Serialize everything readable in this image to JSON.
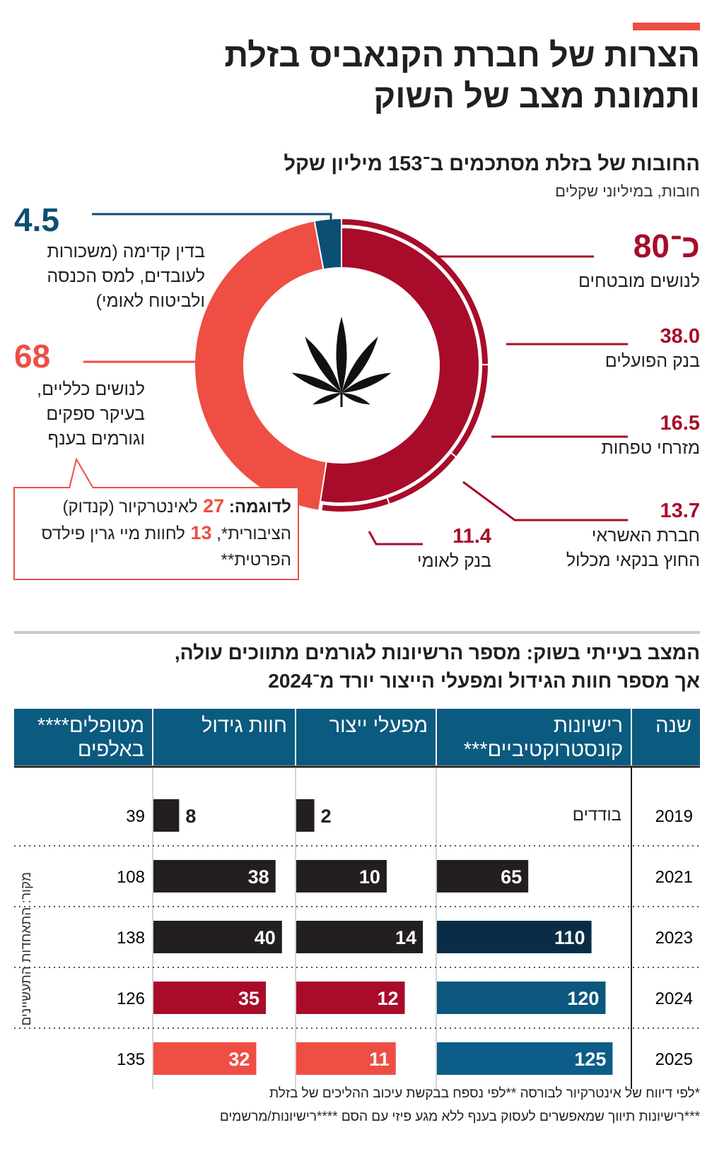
{
  "header": {
    "title_lines": [
      "הצרות של חברת הקנאביס בזלת",
      "ותמונת מצב של השוק"
    ]
  },
  "debt_chart": {
    "type": "donut",
    "title": "החובות של בזלת מסתכמים ב־153 מיליון שקל",
    "subtitle": "חובות, במיליוני שקלים",
    "segments": [
      {
        "lines": [
          "לנושים מובטחים"
        ],
        "value": 80,
        "value_label": "כ־80",
        "color": "#a80c2a"
      },
      {
        "lines": [
          "לנושים כלליים,",
          "בעיקר ספקים",
          "וגורמים בענף"
        ],
        "value": 68,
        "color": "#ee4e43"
      },
      {
        "lines": [
          "בדין קדימה (משכורות",
          "לעובדים, למס הכנסה",
          "ולביטוח לאומי)"
        ],
        "value": 4.5,
        "color": "#0c4f73"
      }
    ],
    "breakdown": {
      "color": "#a80c2a",
      "items": [
        {
          "lines": [
            "בנק הפועלים"
          ],
          "value": 38.0,
          "value_label": "38.0"
        },
        {
          "lines": [
            "מזרחי טפחות"
          ],
          "value": 16.5
        },
        {
          "lines": [
            "חברת האשראי",
            "החוץ בנקאי מכלול"
          ],
          "value": 13.7
        },
        {
          "lines": [
            "בנק לאומי"
          ],
          "value": 11.4
        }
      ]
    },
    "callout": {
      "parts": [
        "לדוגמה:",
        27,
        "לאינטרקיור (קנדוק) הציבורית*,",
        13,
        "לחוות מיי גרין פילדס הפרטית**"
      ],
      "color": "#ee4e43"
    }
  },
  "market": {
    "title_lines": [
      "המצב בעייתי בשוק: מספר הרשיונות לגורמים מתווכים עולה,",
      "אך מספר חוות הגידול ומפעלי הייצור יורד מ־2024"
    ],
    "header_color": "#0b5a80",
    "columns": [
      [
        "שנה"
      ],
      [
        "רישיונות",
        "קונסטרוקטיביים***"
      ],
      [
        "מפעלי ייצור"
      ],
      [
        "חוות גידול"
      ],
      [
        "מטופלים****",
        "באלפים"
      ]
    ],
    "rows": [
      {
        "year": 2019,
        "licenses": "בודדים",
        "factories": 2,
        "farms": 8,
        "patients": 39,
        "color": "#231f20"
      },
      {
        "year": 2021,
        "licenses": 65,
        "factories": 10,
        "farms": 38,
        "patients": 108,
        "licenses_color": "#231f20",
        "color": "#231f20"
      },
      {
        "year": 2023,
        "licenses": 110,
        "factories": 14,
        "farms": 40,
        "patients": 138,
        "licenses_color": "#0a2d47",
        "color": "#231f20"
      },
      {
        "year": 2024,
        "licenses": 120,
        "factories": 12,
        "farms": 35,
        "patients": 126,
        "licenses_color": "#0b577d",
        "color": "#a80c2a"
      },
      {
        "year": 2025,
        "licenses": 125,
        "factories": 11,
        "farms": 32,
        "patients": 135,
        "licenses_color": "#0c5d87",
        "color": "#ee4e43"
      }
    ],
    "source": "מקור: התאחדות התעשיינים",
    "footnotes": [
      "*לפי דיווח של אינטרקיור לבורסה **לפי נספח בבקשת עיכוב ההליכים של בזלת",
      "***רישיונות תיווך שמאפשרים לעסוק בענף ללא מגע פיזי עם הסם ****רישיונות/מרשמים"
    ]
  }
}
